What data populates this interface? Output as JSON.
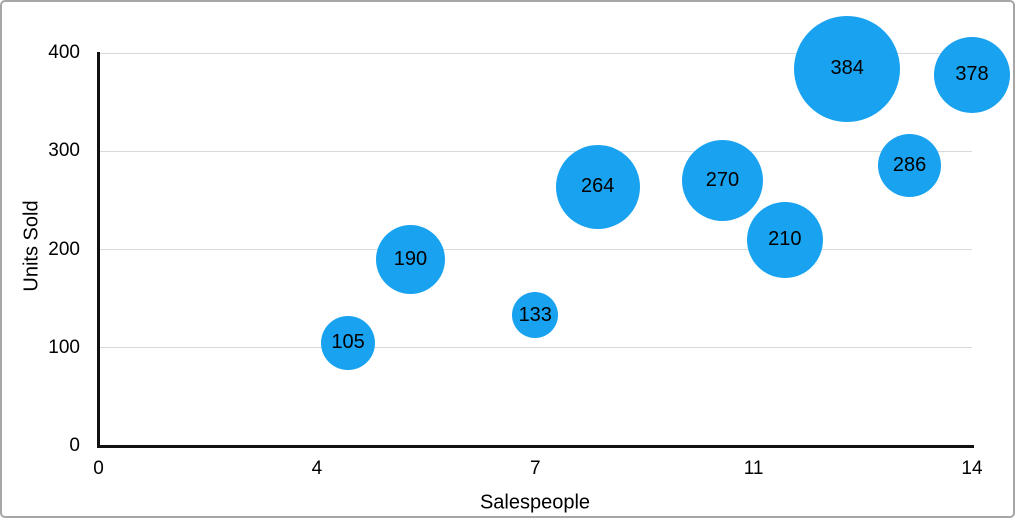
{
  "window": {
    "background": "#ffffff",
    "border_color": "#a6a6a6"
  },
  "chart_data": {
    "type": "scatter",
    "subtype": "bubble",
    "title": "",
    "xlabel": "Salespeople",
    "ylabel": "Units Sold",
    "xlim": [
      0,
      14
    ],
    "ylim": [
      0,
      400
    ],
    "grid": "horizontal-gridlines-only",
    "legend": "none",
    "bubble_color": "#18a2f0",
    "label_color": "#000000",
    "axis_color": "#111111",
    "gridline_color": "#d9d9d9",
    "x_ticks": [
      {
        "value": 0,
        "label": "0"
      },
      {
        "value": 3.5,
        "label": "4"
      },
      {
        "value": 7,
        "label": "7"
      },
      {
        "value": 10.5,
        "label": "11"
      },
      {
        "value": 14,
        "label": "14"
      }
    ],
    "y_ticks": [
      {
        "value": 0,
        "label": "0"
      },
      {
        "value": 100,
        "label": "100"
      },
      {
        "value": 200,
        "label": "200"
      },
      {
        "value": 300,
        "label": "300"
      },
      {
        "value": 400,
        "label": "400"
      }
    ],
    "points": [
      {
        "x": 4,
        "y": 105,
        "label": "105",
        "radius_px": 27
      },
      {
        "x": 5,
        "y": 190,
        "label": "190",
        "radius_px": 34.5
      },
      {
        "x": 7,
        "y": 133,
        "label": "133",
        "radius_px": 23
      },
      {
        "x": 8,
        "y": 264,
        "label": "264",
        "radius_px": 42
      },
      {
        "x": 10,
        "y": 270,
        "label": "270",
        "radius_px": 40.5
      },
      {
        "x": 11,
        "y": 210,
        "label": "210",
        "radius_px": 38
      },
      {
        "x": 12,
        "y": 384,
        "label": "384",
        "radius_px": 53
      },
      {
        "x": 13,
        "y": 286,
        "label": "286",
        "radius_px": 31.5
      },
      {
        "x": 14,
        "y": 378,
        "label": "378",
        "radius_px": 38
      }
    ]
  }
}
